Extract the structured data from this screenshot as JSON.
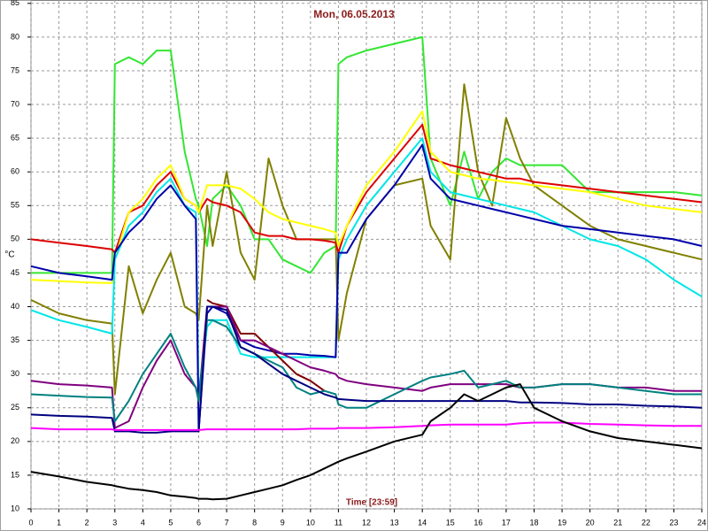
{
  "chart_data": {
    "type": "line",
    "title": "Mon, 06.05.2013",
    "x_label": "Time [23:59]",
    "y_label": "°C",
    "x": [
      0,
      1,
      2,
      2.9,
      3,
      3.5,
      4,
      4.5,
      5,
      5.5,
      5.9,
      6,
      6.3,
      6.5,
      7,
      7.5,
      8,
      8.5,
      9,
      9.5,
      10,
      10.5,
      10.9,
      11,
      11.3,
      12,
      13,
      14,
      14.3,
      15,
      15.5,
      16,
      16.5,
      17,
      17.5,
      18,
      19,
      20,
      21,
      22,
      23,
      24
    ],
    "xlim": [
      0,
      24
    ],
    "xticks": [
      0,
      1,
      2,
      3,
      4,
      5,
      6,
      7,
      8,
      9,
      10,
      11,
      12,
      13,
      14,
      15,
      16,
      17,
      18,
      19,
      20,
      21,
      22,
      23,
      24
    ],
    "ylim": [
      10,
      85.5
    ],
    "yticks": [
      10,
      15,
      20,
      25,
      30,
      35,
      40,
      45,
      50,
      55,
      60,
      65,
      70,
      75,
      80,
      85
    ],
    "grid": true,
    "series": [
      {
        "color": "#33e633",
        "values": [
          45,
          45,
          45,
          45,
          76,
          77,
          76,
          78,
          78,
          63,
          56,
          55,
          49,
          56,
          58,
          55,
          50,
          50,
          47,
          46,
          45,
          48,
          49,
          76,
          77,
          78,
          79,
          80,
          62,
          55,
          63,
          56,
          60,
          62,
          61,
          61,
          61,
          57,
          57,
          57,
          57,
          56.5
        ]
      },
      {
        "color": "#808000",
        "values": [
          41,
          39,
          38,
          37.5,
          27,
          46,
          39,
          44,
          48,
          40,
          39,
          38,
          55,
          49,
          60,
          48,
          44,
          62,
          55,
          50,
          50,
          50,
          50,
          35,
          42,
          53,
          58,
          59,
          52,
          47,
          73,
          60,
          55,
          68,
          62,
          58,
          55,
          52,
          50,
          49,
          48,
          47
        ]
      },
      {
        "color": "#dd0000",
        "values": [
          50,
          49.5,
          49,
          48.5,
          48,
          54,
          55,
          58,
          60,
          56,
          55,
          54,
          56,
          55.5,
          55,
          54,
          51,
          50.5,
          50.5,
          50,
          50,
          49.8,
          49.5,
          48,
          52,
          57,
          62,
          67,
          62,
          61,
          60.5,
          60,
          59.5,
          59,
          59,
          58.5,
          58,
          57.5,
          57,
          56.5,
          56,
          55.5
        ]
      },
      {
        "color": "#ffff00",
        "values": [
          44,
          43.8,
          43.6,
          43.5,
          47,
          54,
          56,
          59,
          61,
          56,
          55,
          54,
          58,
          58,
          58,
          57.5,
          56,
          54,
          53,
          52.5,
          52,
          51.5,
          51,
          49,
          52,
          58,
          63,
          69,
          63,
          60,
          59.5,
          59,
          58.8,
          58.5,
          58.3,
          58,
          57.5,
          57,
          56,
          55,
          54.5,
          54
        ]
      },
      {
        "color": "#00e6e6",
        "values": [
          39.5,
          38,
          37,
          36,
          47,
          52,
          54,
          57,
          59,
          55,
          54,
          27,
          37,
          38,
          38,
          33,
          32.5,
          32.5,
          32.5,
          32.5,
          32.5,
          32.5,
          32.5,
          47,
          50,
          55,
          60,
          65,
          60,
          57,
          56.5,
          56,
          55.5,
          55,
          54.5,
          54,
          52,
          50,
          49,
          47,
          44,
          41.5
        ]
      },
      {
        "color": "#0000aa",
        "values": [
          46,
          45,
          44.5,
          44,
          48,
          51,
          53,
          56,
          58,
          55,
          53,
          21.5,
          39,
          40,
          39,
          35,
          34,
          33.5,
          33,
          33,
          32.8,
          32.7,
          32.5,
          48,
          48,
          53,
          58,
          64,
          59,
          56,
          55.5,
          55,
          54.5,
          54,
          53.5,
          53,
          52,
          51.5,
          51,
          50.5,
          50,
          49
        ]
      },
      {
        "color": "#800000",
        "values": [
          null,
          null,
          null,
          null,
          null,
          null,
          null,
          null,
          null,
          null,
          null,
          null,
          41,
          40.5,
          40,
          36,
          36,
          34,
          32,
          30,
          29,
          27.5,
          null,
          null,
          null,
          null,
          null,
          null,
          null,
          null,
          null,
          null,
          null,
          null,
          null,
          null,
          null,
          null,
          null,
          null,
          null,
          null
        ]
      },
      {
        "color": "#800080",
        "values": [
          29,
          28.5,
          28.3,
          28,
          22,
          23,
          28,
          32,
          35,
          30,
          28,
          26,
          40,
          40,
          40,
          35,
          35,
          34,
          33,
          32,
          31,
          30.5,
          30,
          29.5,
          29,
          28.5,
          28,
          27.5,
          28,
          28.5,
          28.5,
          28.5,
          28.5,
          28.5,
          28,
          28,
          28.5,
          28.5,
          28,
          28,
          27.5,
          27.5
        ]
      },
      {
        "color": "#008080",
        "values": [
          27,
          26.8,
          26.6,
          26.5,
          23,
          26,
          30,
          33,
          36,
          31,
          28,
          26,
          38,
          38,
          37,
          34,
          33,
          32,
          31,
          28,
          27,
          27.5,
          27,
          25.5,
          25,
          25,
          27,
          29,
          29.5,
          30,
          30.5,
          28,
          28.5,
          29,
          28,
          28,
          28.5,
          28.5,
          28,
          27.5,
          27,
          27
        ]
      },
      {
        "color": "#000080",
        "values": [
          24,
          23.8,
          23.7,
          23.5,
          21.5,
          21.5,
          21.3,
          21.3,
          21.5,
          21.5,
          21.5,
          21.5,
          40,
          40,
          39.5,
          34,
          33,
          31.5,
          30,
          29,
          28,
          27,
          26.5,
          26.3,
          26.2,
          26,
          26,
          26,
          26,
          26,
          26,
          26,
          26,
          26,
          25.8,
          25.8,
          25.7,
          25.5,
          25.5,
          25.3,
          25.2,
          25
        ]
      },
      {
        "color": "#ff00ff",
        "values": [
          22,
          21.8,
          21.8,
          21.8,
          21.7,
          21.7,
          21.7,
          21.7,
          21.7,
          21.7,
          21.7,
          21.7,
          21.8,
          21.8,
          21.8,
          21.8,
          21.8,
          21.8,
          21.8,
          21.8,
          21.9,
          21.9,
          21.9,
          22,
          22,
          22,
          22.1,
          22.3,
          22.4,
          22.5,
          22.5,
          22.5,
          22.5,
          22.5,
          22.7,
          22.8,
          22.8,
          22.6,
          22.5,
          22.4,
          22.3,
          22.3
        ]
      },
      {
        "color": "#000000",
        "values": [
          15.5,
          14.8,
          14,
          13.5,
          13.4,
          13,
          12.8,
          12.5,
          12,
          11.8,
          11.6,
          11.5,
          11.5,
          11.4,
          11.5,
          12,
          12.5,
          13,
          13.5,
          14.3,
          15,
          16,
          16.8,
          17,
          17.5,
          18.5,
          20,
          21,
          23,
          25,
          27,
          26,
          27,
          28,
          28.5,
          25,
          23,
          21.5,
          20.5,
          20,
          19.5,
          19
        ]
      }
    ]
  }
}
